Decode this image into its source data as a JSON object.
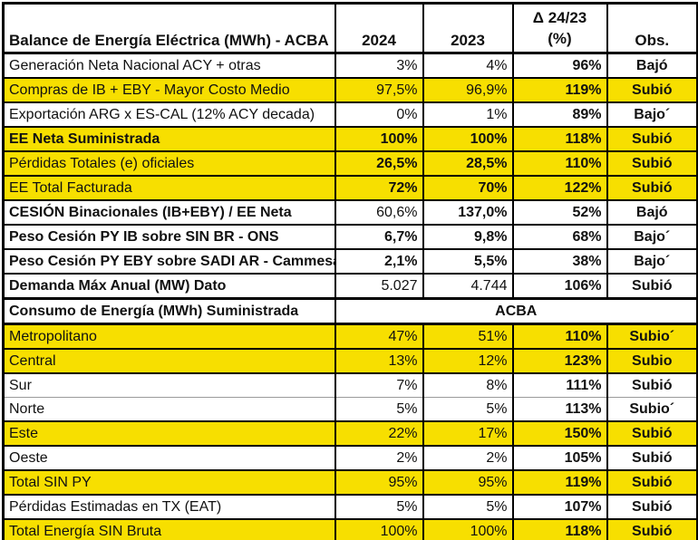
{
  "colors": {
    "highlight": "#F7DF00",
    "border": "#000000",
    "thin_border": "#9A9A9A",
    "background": "#FFFFFF",
    "text": "#111111"
  },
  "chart_data": {
    "type": "table",
    "title": "Balance de Energía Eléctrica (MWh) - ACBA",
    "columns": [
      "Balance de Energía Eléctrica (MWh) - ACBA",
      "2024",
      "2023",
      "Δ 24/23 (%)",
      "Obs."
    ],
    "header": {
      "title": "Balance de Energía Eléctrica (MWh) - ACBA",
      "year_2024": "2024",
      "year_2023": "2023",
      "delta_line1": "Δ 24/23",
      "delta_line2": "(%)",
      "obs": "Obs."
    },
    "rows": [
      {
        "type": "data",
        "label": "Generación Neta Nacional ACY + otras",
        "y2024": "3%",
        "y2023": "4%",
        "delta": "96%",
        "obs": "Bajó",
        "highlight": false,
        "bold_label": false,
        "bold_2024": false,
        "bold_2023": false
      },
      {
        "type": "data",
        "label": "Compras de IB + EBY - Mayor Costo Medio",
        "y2024": "97,5%",
        "y2023": "96,9%",
        "delta": "119%",
        "obs": "Subió",
        "highlight": true,
        "bold_label": false,
        "bold_2024": false,
        "bold_2023": false
      },
      {
        "type": "data",
        "label": "Exportación ARG x ES-CAL (12% ACY decada)",
        "y2024": "0%",
        "y2023": "1%",
        "delta": "89%",
        "obs": "Bajo´",
        "highlight": false,
        "bold_label": false,
        "bold_2024": false,
        "bold_2023": false
      },
      {
        "type": "data",
        "label": "EE Neta Suministrada",
        "y2024": "100%",
        "y2023": "100%",
        "delta": "118%",
        "obs": "Subió",
        "highlight": true,
        "bold_label": true,
        "bold_2024": true,
        "bold_2023": true
      },
      {
        "type": "data",
        "label": "Pérdidas Totales (e) oficiales",
        "y2024": "26,5%",
        "y2023": "28,5%",
        "delta": "110%",
        "obs": "Subió",
        "highlight": true,
        "bold_label": false,
        "bold_2024": true,
        "bold_2023": true
      },
      {
        "type": "data",
        "label": "EE Total Facturada",
        "y2024": "72%",
        "y2023": "70%",
        "delta": "122%",
        "obs": "Subió",
        "highlight": true,
        "bold_label": false,
        "bold_2024": true,
        "bold_2023": true
      },
      {
        "type": "data",
        "label": "CESIÓN Binacionales (IB+EBY) / EE Neta",
        "y2024": "60,6%",
        "y2023": "137,0%",
        "delta": "52%",
        "obs": "Bajó",
        "highlight": false,
        "bold_label": true,
        "bold_2024": false,
        "bold_2023": true
      },
      {
        "type": "data",
        "label": "Peso Cesión PY IB sobre SIN BR - ONS",
        "y2024": "6,7%",
        "y2023": "9,8%",
        "delta": "68%",
        "obs": "Bajo´",
        "highlight": false,
        "bold_label": true,
        "bold_2024": true,
        "bold_2023": true
      },
      {
        "type": "data",
        "label": "Peso Cesión PY EBY sobre SADI AR - Cammesa",
        "y2024": "2,1%",
        "y2023": "5,5%",
        "delta": "38%",
        "obs": "Bajo´",
        "highlight": false,
        "bold_label": true,
        "bold_2024": true,
        "bold_2023": true
      },
      {
        "type": "data",
        "label": "Demanda Máx Anual (MW) Dato",
        "y2024": "5.027",
        "y2023": "4.744",
        "delta": "106%",
        "obs": "Subió",
        "highlight": false,
        "bold_label": true,
        "bold_2024": false,
        "bold_2023": false
      },
      {
        "type": "section",
        "label": "Consumo de Energía (MWh) Suministrada",
        "span_value": "ACBA"
      },
      {
        "type": "data",
        "label": "Metropolitano",
        "y2024": "47%",
        "y2023": "51%",
        "delta": "110%",
        "obs": "Subio´",
        "highlight": true,
        "bold_label": false,
        "bold_2024": false,
        "bold_2023": false
      },
      {
        "type": "data",
        "label": "Central",
        "y2024": "13%",
        "y2023": "12%",
        "delta": "123%",
        "obs": "Subio",
        "highlight": true,
        "bold_label": false,
        "bold_2024": false,
        "bold_2023": false
      },
      {
        "type": "data",
        "label": "Sur",
        "y2024": "7%",
        "y2023": "8%",
        "delta": "111%",
        "obs": "Subió",
        "highlight": false,
        "bold_label": false,
        "bold_2024": false,
        "bold_2023": false,
        "thin_bottom": true
      },
      {
        "type": "data",
        "label": "Norte",
        "y2024": "5%",
        "y2023": "5%",
        "delta": "113%",
        "obs": "Subio´",
        "highlight": false,
        "bold_label": false,
        "bold_2024": false,
        "bold_2023": false,
        "thin_top": true
      },
      {
        "type": "data",
        "label": "Este",
        "y2024": "22%",
        "y2023": "17%",
        "delta": "150%",
        "obs": "Subió",
        "highlight": true,
        "bold_label": false,
        "bold_2024": false,
        "bold_2023": false
      },
      {
        "type": "data",
        "label": "Oeste",
        "y2024": "2%",
        "y2023": "2%",
        "delta": "105%",
        "obs": "Subió",
        "highlight": false,
        "bold_label": false,
        "bold_2024": false,
        "bold_2023": false
      },
      {
        "type": "data",
        "label": "Total SIN PY",
        "y2024": "95%",
        "y2023": "95%",
        "delta": "119%",
        "obs": "Subió",
        "highlight": true,
        "bold_label": false,
        "bold_2024": false,
        "bold_2023": false
      },
      {
        "type": "data",
        "label": "Pérdidas Estimadas en TX (EAT)",
        "y2024": "5%",
        "y2023": "5%",
        "delta": "107%",
        "obs": "Subió",
        "highlight": false,
        "bold_label": false,
        "bold_2024": false,
        "bold_2023": false
      },
      {
        "type": "data",
        "label": "Total Energía SIN Bruta",
        "y2024": "100%",
        "y2023": "100%",
        "delta": "118%",
        "obs": "Subió",
        "highlight": true,
        "bold_label": false,
        "bold_2024": false,
        "bold_2023": false
      }
    ]
  }
}
